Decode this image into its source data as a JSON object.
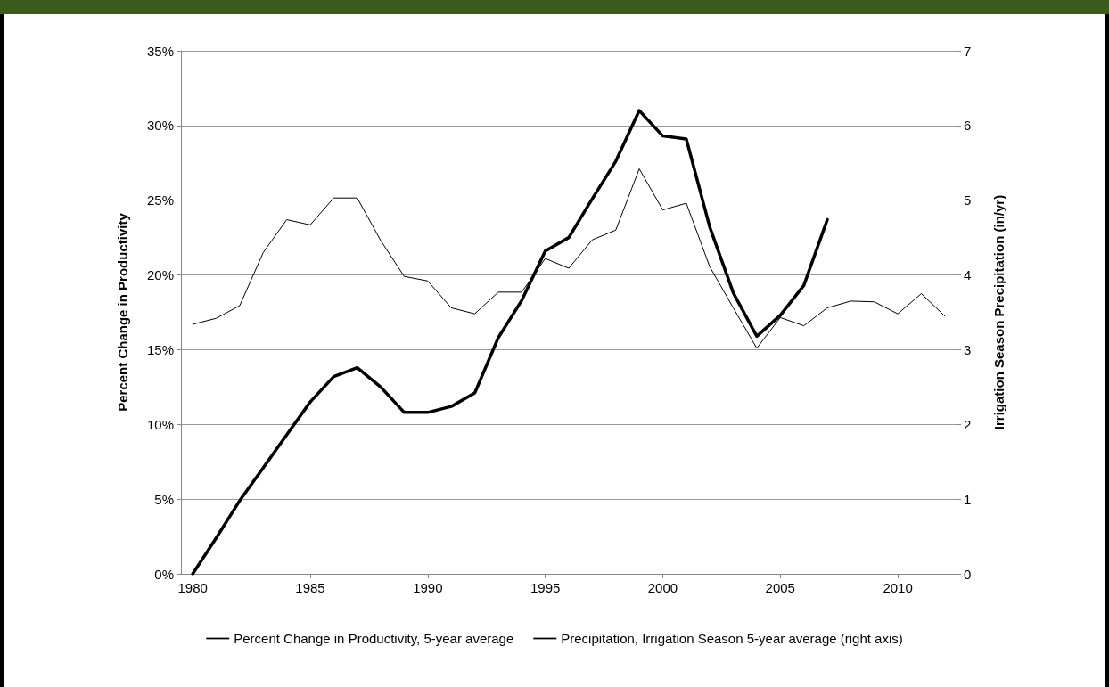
{
  "chart_data": {
    "type": "line",
    "categories": [
      "1980",
      null,
      null,
      null,
      null,
      "1985",
      null,
      null,
      null,
      null,
      "1990",
      null,
      null,
      null,
      null,
      "1995",
      null,
      null,
      null,
      null,
      "2000",
      null,
      null,
      null,
      null,
      "2005",
      null,
      null,
      null,
      null,
      "2010",
      null,
      null
    ],
    "series": [
      {
        "name": "Percent Change in Productivity, 5-year average",
        "color": "#000000",
        "values": [
          0,
          2.4,
          4.9,
          7.1,
          9.3,
          11.5,
          13.2,
          13.8,
          12.5,
          10.8,
          10.8,
          11.2,
          12.1,
          15.8,
          18.3,
          21.6,
          22.5,
          25.1,
          27.6,
          31.0,
          29.3,
          29.1,
          23.2,
          18.8,
          15.9,
          17.3,
          19.3,
          23.7,
          null,
          null,
          null,
          null,
          null
        ]
      },
      {
        "name": "Precipitation, Irrigation Season 5-year average (right axis)",
        "color": "#000000",
        "axis": "y2",
        "values": [
          3.34,
          3.42,
          3.59,
          4.3,
          4.74,
          4.67,
          5.03,
          5.03,
          4.46,
          3.98,
          3.92,
          3.56,
          3.48,
          3.77,
          3.77,
          4.22,
          4.09,
          4.47,
          4.6,
          5.42,
          4.87,
          4.96,
          4.11,
          3.56,
          3.02,
          3.43,
          3.32,
          3.56,
          3.65,
          3.64,
          3.48,
          3.75,
          3.45
        ]
      }
    ],
    "ylabel": "Percent Change in Productivity",
    "y2label": "Irrigation Season Precipitation (in/yr)",
    "ylim": [
      0,
      35
    ],
    "yticks": [
      {
        "value": 0,
        "label": "0%"
      },
      {
        "value": 5,
        "label": "5%"
      },
      {
        "value": 10,
        "label": "10%"
      },
      {
        "value": 15,
        "label": "15%"
      },
      {
        "value": 20,
        "label": "20%"
      },
      {
        "value": 25,
        "label": "25%"
      },
      {
        "value": 30,
        "label": "30%"
      },
      {
        "value": 35,
        "label": "35%"
      }
    ],
    "y2lim": [
      0,
      7
    ],
    "y2ticks": [
      0,
      1,
      2,
      3,
      4,
      5,
      6,
      7
    ],
    "grid": "y",
    "legend": "bottom",
    "marker": "none",
    "line_style": "solid"
  }
}
